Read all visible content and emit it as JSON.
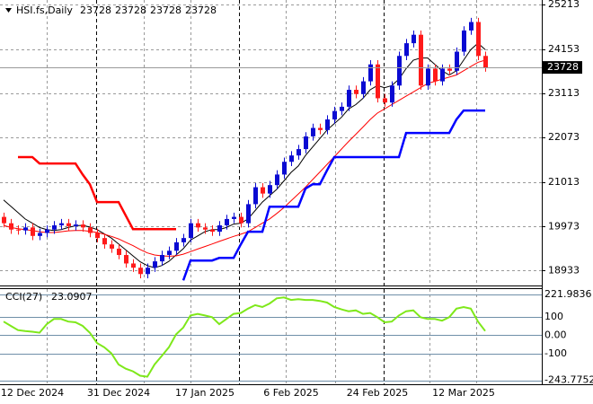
{
  "chart_data": [
    {
      "type": "candlestick",
      "symbol": "HSI.fs,Daily",
      "quote": [
        23728,
        23728,
        23728,
        23728
      ],
      "categories": [
        null,
        null,
        null,
        null,
        "12 Dec 2024",
        null,
        null,
        null,
        null,
        null,
        null,
        null,
        null,
        null,
        null,
        null,
        "31 Dec 2024",
        null,
        null,
        null,
        null,
        null,
        null,
        null,
        null,
        null,
        null,
        null,
        "17 Jan 2025",
        null,
        null,
        null,
        null,
        null,
        null,
        null,
        null,
        null,
        null,
        null,
        "6 Feb 2025",
        null,
        null,
        null,
        null,
        null,
        null,
        null,
        null,
        null,
        null,
        null,
        "24 Feb 2025",
        null,
        null,
        null,
        null,
        null,
        null,
        null,
        null,
        null,
        null,
        null,
        "12 Mar 2025",
        null,
        null,
        null
      ],
      "open": [
        20200,
        20050,
        19900,
        19880,
        19950,
        19750,
        19820,
        19900,
        20000,
        20050,
        19980,
        20020,
        19950,
        19820,
        19700,
        19550,
        19450,
        19300,
        19100,
        19000,
        18850,
        19000,
        19150,
        19300,
        19400,
        19600,
        19700,
        20050,
        19950,
        19900,
        19850,
        20000,
        20150,
        20200,
        20050,
        20500,
        20900,
        20750,
        20950,
        21200,
        21500,
        21650,
        21800,
        22100,
        22300,
        22250,
        22500,
        22700,
        22800,
        23200,
        23100,
        23400,
        23800,
        23000,
        22900,
        23300,
        24000,
        24300,
        24500,
        23300,
        23700,
        23400,
        23700,
        23650,
        24100,
        24600,
        24800,
        24000
      ],
      "high": [
        20300,
        20150,
        20000,
        20050,
        20050,
        19920,
        20000,
        20100,
        20150,
        20150,
        20120,
        20120,
        20050,
        19920,
        19800,
        19650,
        19550,
        19400,
        19200,
        19100,
        19100,
        19250,
        19400,
        19500,
        19700,
        19800,
        20150,
        20150,
        20050,
        20000,
        20100,
        20250,
        20300,
        20300,
        20600,
        21000,
        21000,
        21050,
        21300,
        21600,
        21750,
        21900,
        22200,
        22400,
        22400,
        22600,
        22800,
        22900,
        23300,
        23300,
        23500,
        23900,
        23900,
        23100,
        23400,
        24100,
        24400,
        24600,
        24600,
        23800,
        23800,
        23800,
        23800,
        24200,
        24700,
        24900,
        24900,
        24100
      ],
      "low": [
        19950,
        19800,
        19780,
        19780,
        19650,
        19650,
        19720,
        19800,
        19900,
        19880,
        19880,
        19850,
        19720,
        19600,
        19450,
        19350,
        19200,
        19000,
        18900,
        18750,
        18750,
        18900,
        19050,
        19200,
        19300,
        19500,
        19600,
        19850,
        19800,
        19750,
        19750,
        19900,
        20050,
        19950,
        19950,
        20400,
        20650,
        20650,
        20850,
        21100,
        21400,
        21550,
        21700,
        22000,
        22150,
        22150,
        22400,
        22600,
        22700,
        23000,
        23000,
        23300,
        22900,
        22800,
        22800,
        23200,
        23900,
        24200,
        23200,
        23200,
        23300,
        23300,
        23550,
        23550,
        24000,
        24500,
        23900,
        23628
      ],
      "close": [
        20050,
        19900,
        19880,
        19950,
        19750,
        19820,
        19900,
        20000,
        20050,
        19980,
        20020,
        19950,
        19820,
        19700,
        19550,
        19450,
        19300,
        19100,
        19000,
        18850,
        19000,
        19150,
        19300,
        19400,
        19600,
        19700,
        20050,
        19950,
        19900,
        19850,
        20000,
        20150,
        20200,
        20050,
        20500,
        20900,
        20750,
        20950,
        21200,
        21500,
        21650,
        21800,
        22100,
        22300,
        22250,
        22500,
        22700,
        22800,
        23200,
        23100,
        23400,
        23800,
        23000,
        22900,
        23300,
        24000,
        24300,
        24500,
        23300,
        23700,
        23400,
        23700,
        23650,
        24100,
        24600,
        24800,
        24000,
        23728
      ],
      "up_color": "#0a0ad2",
      "down_color": "#ff1a1a",
      "lines": [
        {
          "color": "#000000",
          "width": 1,
          "values": [
            20600,
            20450,
            20300,
            20150,
            20050,
            19950,
            19900,
            19880,
            19900,
            19950,
            19990,
            20000,
            19960,
            19900,
            19800,
            19700,
            19560,
            19420,
            19280,
            19140,
            19050,
            19000,
            19050,
            19150,
            19300,
            19450,
            19650,
            19750,
            19850,
            19900,
            19900,
            19950,
            20030,
            20050,
            20150,
            20350,
            20550,
            20700,
            20850,
            21050,
            21250,
            21400,
            21650,
            21850,
            22050,
            22250,
            22400,
            22550,
            22750,
            22850,
            23000,
            23200,
            23300,
            23250,
            23300,
            23450,
            23700,
            23900,
            23950,
            23950,
            23800,
            23650,
            23550,
            23650,
            23900,
            24150,
            24300,
            24150
          ]
        },
        {
          "color": "#ff0000",
          "width": 1,
          "values": [
            20000,
            19950,
            19920,
            19900,
            19880,
            19850,
            19830,
            19830,
            19850,
            19870,
            19880,
            19880,
            19860,
            19830,
            19790,
            19740,
            19680,
            19600,
            19520,
            19430,
            19350,
            19300,
            19280,
            19270,
            19280,
            19320,
            19380,
            19440,
            19500,
            19560,
            19620,
            19680,
            19740,
            19790,
            19850,
            19950,
            20050,
            20150,
            20280,
            20420,
            20580,
            20740,
            20900,
            21080,
            21260,
            21440,
            21620,
            21800,
            21980,
            22150,
            22320,
            22500,
            22650,
            22750,
            22850,
            22950,
            23050,
            23150,
            23250,
            23350,
            23400,
            23450,
            23500,
            23550,
            23650,
            23750,
            23850,
            23900
          ]
        },
        {
          "color": "#0000ff",
          "width": 2.5,
          "values": [
            null,
            null,
            null,
            null,
            null,
            null,
            null,
            null,
            null,
            null,
            null,
            null,
            null,
            null,
            null,
            null,
            null,
            null,
            null,
            null,
            null,
            null,
            null,
            null,
            null,
            18700,
            19170,
            19170,
            19170,
            19170,
            19230,
            19230,
            19230,
            19550,
            19850,
            19850,
            19850,
            20440,
            20440,
            20440,
            20440,
            20440,
            20870,
            20970,
            20970,
            21300,
            21610,
            21610,
            21610,
            21610,
            21610,
            21610,
            21610,
            21610,
            21610,
            21610,
            22180,
            22180,
            22180,
            22180,
            22180,
            22180,
            22180,
            22500,
            22710,
            22710,
            22710,
            22710
          ]
        },
        {
          "color": "#ff0000",
          "width": 2.5,
          "values": [
            null,
            null,
            21610,
            21610,
            21610,
            21460,
            21460,
            21460,
            21460,
            21460,
            21460,
            21200,
            20970,
            20550,
            20550,
            20550,
            20550,
            20230,
            19910,
            19910,
            19910,
            19910,
            19910,
            19910,
            19910,
            null,
            null,
            null,
            null,
            null,
            null,
            null,
            null,
            null,
            null,
            null,
            null,
            null,
            null,
            null,
            null,
            null,
            null,
            null,
            null,
            null,
            null,
            null,
            null,
            null,
            null,
            null,
            null,
            null,
            null,
            null,
            null,
            null,
            null,
            null,
            null,
            null,
            null,
            null,
            null,
            null,
            null,
            null
          ]
        }
      ],
      "ylim": [
        18580,
        25320
      ],
      "yticks": [
        25213,
        24153,
        23113,
        22073,
        21013,
        19973,
        18933
      ],
      "grid": true
    },
    {
      "type": "line",
      "title": "CCI(27)",
      "color": "#7ee81a",
      "values": [
        74,
        51,
        28,
        23,
        19,
        14,
        60,
        88,
        88,
        74,
        70,
        51,
        14,
        -42,
        -65,
        -98,
        -158,
        -181,
        -195,
        -219,
        -224,
        -158,
        -112,
        -65,
        5,
        42,
        107,
        116,
        107,
        98,
        60,
        88,
        116,
        121,
        144,
        163,
        153,
        172,
        200,
        205,
        191,
        195,
        191,
        191,
        186,
        177,
        153,
        140,
        130,
        135,
        116,
        121,
        98,
        70,
        74,
        107,
        130,
        135,
        98,
        88,
        88,
        79,
        98,
        144,
        153,
        144,
        74,
        23.0907
      ],
      "ylim": [
        -265,
        250
      ],
      "yticks": [
        221.9836,
        100,
        {
          "value": 0,
          "label": "0.00"
        },
        -100,
        -243.7752
      ]
    }
  ]
}
